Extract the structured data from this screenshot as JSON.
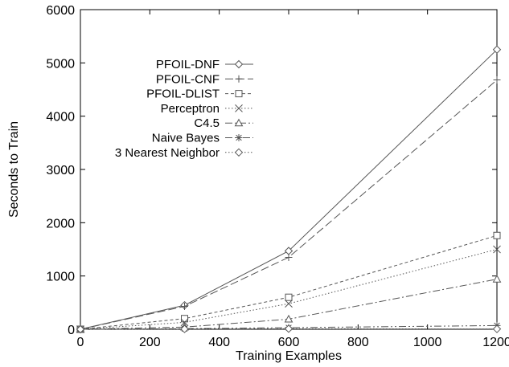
{
  "chart_data": {
    "type": "line",
    "title": "",
    "xlabel": "Training Examples",
    "ylabel": "Seconds to Train",
    "xlim": [
      0,
      1200
    ],
    "ylim": [
      0,
      6000
    ],
    "xticks": [
      "0",
      "200",
      "400",
      "600",
      "800",
      "1000",
      "1200"
    ],
    "yticks": [
      "0",
      "1000",
      "2000",
      "3000",
      "4000",
      "5000",
      "6000"
    ],
    "grid": false,
    "legend_position": "upper-left",
    "x": [
      0,
      300,
      600,
      1200
    ],
    "series": [
      {
        "name": "PFOIL-DNF",
        "values": [
          0,
          450,
          1470,
          5250
        ],
        "marker": "diamond",
        "dash": "solid",
        "color": "#555555"
      },
      {
        "name": "PFOIL-CNF",
        "values": [
          0,
          430,
          1350,
          4680
        ],
        "marker": "plus",
        "dash": "long-dash",
        "color": "#555555"
      },
      {
        "name": "PFOIL-DLIST",
        "values": [
          0,
          200,
          600,
          1760
        ],
        "marker": "square",
        "dash": "short-dash",
        "color": "#555555"
      },
      {
        "name": "Perceptron",
        "values": [
          0,
          130,
          480,
          1500
        ],
        "marker": "cross",
        "dash": "dotted",
        "color": "#555555"
      },
      {
        "name": "C4.5",
        "values": [
          0,
          40,
          190,
          940
        ],
        "marker": "triangle",
        "dash": "dash-dot",
        "color": "#555555"
      },
      {
        "name": "Naive Bayes",
        "values": [
          0,
          10,
          30,
          70
        ],
        "marker": "asterisk",
        "dash": "dash-dot-dot",
        "color": "#555555"
      },
      {
        "name": "3 Nearest Neighbor",
        "values": [
          0,
          5,
          10,
          5
        ],
        "marker": "diamond",
        "dash": "dotted",
        "color": "#555555"
      }
    ]
  }
}
